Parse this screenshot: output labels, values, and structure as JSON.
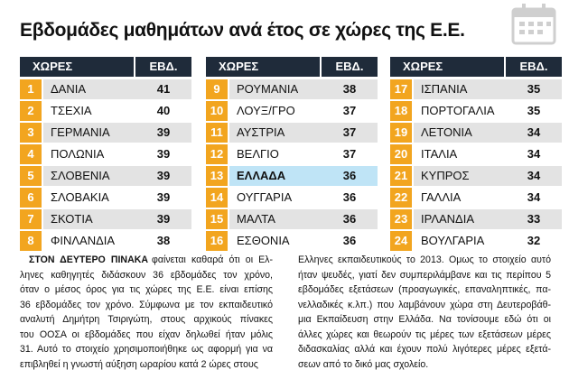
{
  "title": "Εβδομάδες μαθημάτων ανά έτος σε χώρες της Ε.Ε.",
  "tables": [
    {
      "header": {
        "country": "ΧΩΡΕΣ",
        "weeks": "ΕΒΔ."
      },
      "rows": [
        {
          "rank": 1,
          "country": "ΔΑΝΙΑ",
          "weeks": 41
        },
        {
          "rank": 2,
          "country": "ΤΣΕΧΙΑ",
          "weeks": 40
        },
        {
          "rank": 3,
          "country": "ΓΕΡΜΑΝΙΑ",
          "weeks": 39
        },
        {
          "rank": 4,
          "country": "ΠΟΛΩΝΙΑ",
          "weeks": 39
        },
        {
          "rank": 5,
          "country": "ΣΛΟΒΕΝΙΑ",
          "weeks": 39
        },
        {
          "rank": 6,
          "country": "ΣΛΟΒΑΚΙΑ",
          "weeks": 39
        },
        {
          "rank": 7,
          "country": "ΣΚΟΤΙΑ",
          "weeks": 39
        },
        {
          "rank": 8,
          "country": "ΦΙΝΛΑΝΔΙΑ",
          "weeks": 38
        }
      ]
    },
    {
      "header": {
        "country": "ΧΩΡΕΣ",
        "weeks": "ΕΒΔ."
      },
      "rows": [
        {
          "rank": 9,
          "country": "ΡΟΥΜΑΝΙΑ",
          "weeks": 38
        },
        {
          "rank": 10,
          "country": "ΛΟΥΞ/ΓΡΟ",
          "weeks": 37
        },
        {
          "rank": 11,
          "country": "ΑΥΣΤΡΙΑ",
          "weeks": 37
        },
        {
          "rank": 12,
          "country": "ΒΕΛΓΙΟ",
          "weeks": 37
        },
        {
          "rank": 13,
          "country": "ΕΛΛΑΔΑ",
          "weeks": 36,
          "highlight": true
        },
        {
          "rank": 14,
          "country": "ΟΥΓΓΑΡΙΑ",
          "weeks": 36
        },
        {
          "rank": 15,
          "country": "ΜΑΛΤΑ",
          "weeks": 36
        },
        {
          "rank": 16,
          "country": "ΕΣΘΟΝΙΑ",
          "weeks": 36
        }
      ]
    },
    {
      "header": {
        "country": "ΧΩΡΕΣ",
        "weeks": "ΕΒΔ."
      },
      "rows": [
        {
          "rank": 17,
          "country": "ΙΣΠΑΝΙΑ",
          "weeks": 35
        },
        {
          "rank": 18,
          "country": "ΠΟΡΤΟΓΑΛΙΑ",
          "weeks": 35
        },
        {
          "rank": 19,
          "country": "ΛΕΤΟΝΙΑ",
          "weeks": 34
        },
        {
          "rank": 20,
          "country": "ΙΤΑΛΙΑ",
          "weeks": 34
        },
        {
          "rank": 21,
          "country": "ΚΥΠΡΟΣ",
          "weeks": 34
        },
        {
          "rank": 22,
          "country": "ΓΑΛΛΙΑ",
          "weeks": 34
        },
        {
          "rank": 23,
          "country": "ΙΡΛΑΝΔΙΑ",
          "weeks": 33
        },
        {
          "rank": 24,
          "country": "ΒΟΥΛΓΑΡΙΑ",
          "weeks": 32
        }
      ]
    }
  ],
  "text": {
    "lead": "ΣΤΟΝ ΔΕΥΤΕΡΟ ΠΙΝΑΚΑ",
    "columns": [
      [
        "φαίνεται καθαρά ότι οι Ελ-",
        "ληνες καθηγητές διδάσκουν 36 εβδομάδες τον χρόνο,",
        "όταν ο μέσος όρος για τις χώρες της Ε.Ε. είναι επίσης",
        "36 εβδομάδες τον χρόνο. Σύμφωνα με τον εκπαιδευτικό",
        "αναλυτή Δημήτρη Τσιριγώτη, στους αρχικούς πίνακες",
        "του ΟΟΣΑ οι εβδομάδες που είχαν δηλωθεί ήταν μόλις",
        "31. Αυτό το στοιχείο χρησιμοποιήθηκε ως αφορμή για να",
        "επιβληθεί η γνωστή αύξηση ωραρίου κατά 2 ώρες στους"
      ],
      [
        "Ελληνες εκπαιδευτικούς το 2013. Ομως το στοιχείο αυτό",
        "ήταν ψευδές, γιατί δεν συμπεριλάμβανε και τις περίπου 5",
        "εβδομάδες εξετάσεων (προαγωγικές, επαναληπτικές, πα-",
        "νελλαδικές κ.λπ.) που λαμβάνουν χώρα στη Δευτεροβάθ-",
        "μια Εκπαίδευση στην Ελλάδα. Να τονίσουμε εδώ ότι οι",
        "άλλες χώρες και θεωρούν τις μέρες των εξετάσεων μέρες",
        "διδασκαλίας αλλά και έχουν πολύ λιγότερες μέρες εξετά-",
        "σεων από το δικό μας σχολείο."
      ]
    ]
  }
}
